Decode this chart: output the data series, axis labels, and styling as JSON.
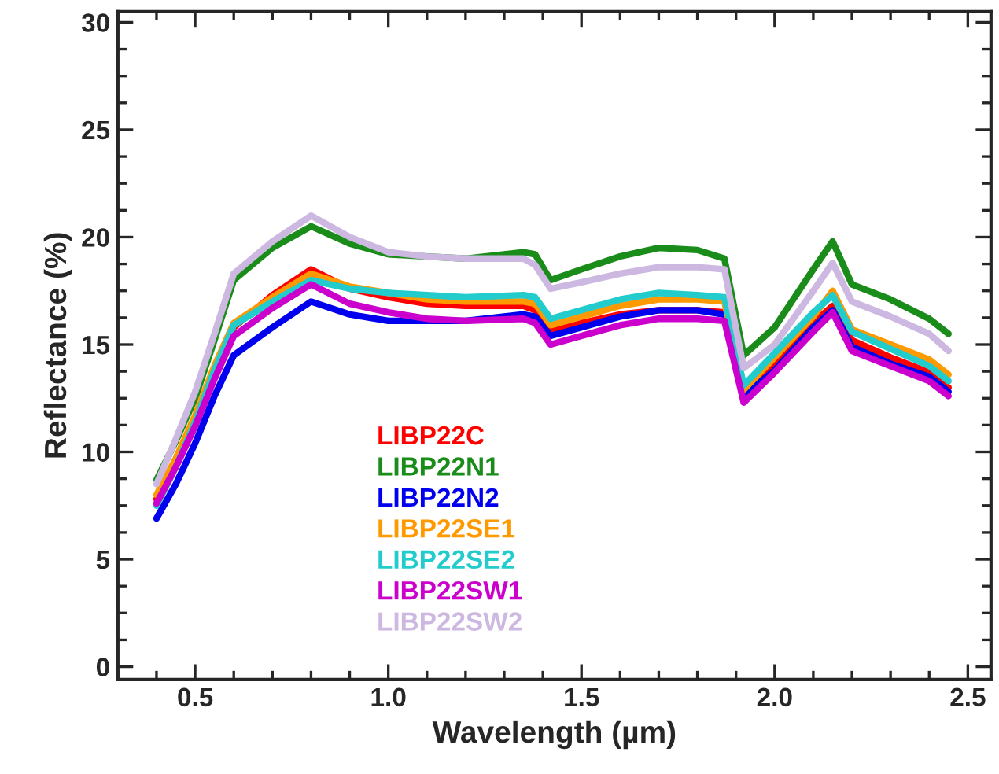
{
  "chart_data": {
    "type": "line",
    "xlabel": "Wavelength (µm)",
    "ylabel": "Reflectance (%)",
    "x": [
      0.4,
      0.45,
      0.5,
      0.55,
      0.6,
      0.7,
      0.8,
      0.9,
      1.0,
      1.1,
      1.2,
      1.35,
      1.38,
      1.42,
      1.5,
      1.6,
      1.7,
      1.8,
      1.87,
      1.92,
      2.0,
      2.1,
      2.15,
      2.2,
      2.3,
      2.4,
      2.45
    ],
    "series": [
      {
        "name": "LIBP22C",
        "color": "#ff0000",
        "values": [
          7.8,
          9.5,
          11.5,
          13.8,
          15.8,
          17.3,
          18.5,
          17.6,
          17.2,
          16.9,
          16.8,
          16.8,
          16.6,
          15.6,
          16.0,
          16.4,
          16.6,
          16.6,
          16.5,
          12.6,
          14.0,
          16.0,
          16.8,
          15.2,
          14.4,
          13.7,
          13.0
        ]
      },
      {
        "name": "LIBP22N1",
        "color": "#1a8c1a",
        "values": [
          8.7,
          10.5,
          12.5,
          15.2,
          18.0,
          19.5,
          20.5,
          19.7,
          19.2,
          19.1,
          19.0,
          19.3,
          19.2,
          18.0,
          18.5,
          19.1,
          19.5,
          19.4,
          19.0,
          14.5,
          15.8,
          18.5,
          19.8,
          17.8,
          17.1,
          16.2,
          15.5
        ]
      },
      {
        "name": "LIBP22N2",
        "color": "#0000ee",
        "values": [
          6.9,
          8.5,
          10.4,
          12.6,
          14.5,
          15.8,
          17.0,
          16.4,
          16.1,
          16.1,
          16.1,
          16.4,
          16.3,
          15.4,
          15.8,
          16.3,
          16.6,
          16.6,
          16.4,
          12.6,
          13.8,
          15.8,
          16.6,
          14.9,
          14.1,
          13.5,
          12.8
        ]
      },
      {
        "name": "LIBP22SE1",
        "color": "#ff9900",
        "values": [
          8.0,
          9.7,
          11.7,
          14.0,
          16.0,
          17.2,
          18.3,
          17.7,
          17.4,
          17.1,
          17.0,
          17.0,
          16.9,
          15.9,
          16.3,
          16.8,
          17.1,
          17.1,
          17.0,
          12.9,
          14.4,
          16.3,
          17.5,
          15.7,
          15.0,
          14.3,
          13.6
        ]
      },
      {
        "name": "LIBP22SE2",
        "color": "#22cccc",
        "values": [
          7.5,
          9.3,
          11.4,
          13.8,
          15.9,
          17.0,
          18.0,
          17.6,
          17.4,
          17.3,
          17.2,
          17.3,
          17.2,
          16.2,
          16.6,
          17.1,
          17.4,
          17.3,
          17.2,
          13.1,
          14.6,
          16.5,
          17.3,
          15.6,
          14.8,
          14.0,
          13.3
        ]
      },
      {
        "name": "LIBP22SW1",
        "color": "#cc00cc",
        "values": [
          7.6,
          9.3,
          11.2,
          13.4,
          15.4,
          16.7,
          17.8,
          16.9,
          16.5,
          16.2,
          16.1,
          16.2,
          16.0,
          15.0,
          15.4,
          15.9,
          16.2,
          16.2,
          16.1,
          12.3,
          13.7,
          15.6,
          16.5,
          14.7,
          14.0,
          13.3,
          12.6
        ]
      },
      {
        "name": "LIBP22SW2",
        "color": "#ccb8e0",
        "values": [
          8.5,
          10.6,
          12.8,
          15.5,
          18.3,
          19.8,
          21.0,
          20.0,
          19.3,
          19.1,
          19.0,
          19.0,
          18.7,
          17.6,
          17.9,
          18.3,
          18.6,
          18.6,
          18.5,
          13.9,
          15.0,
          17.5,
          18.8,
          17.0,
          16.3,
          15.5,
          14.7
        ]
      }
    ],
    "xlim": [
      0.3,
      2.56
    ],
    "ylim": [
      -0.6,
      30.5
    ],
    "xticks": [
      0.5,
      {
        "value": 1.0,
        "label": "1.0"
      },
      1.5,
      {
        "value": 2.0,
        "label": "2.0"
      },
      2.5
    ],
    "yticks": [
      0,
      5,
      10,
      15,
      20,
      25,
      30
    ],
    "grid": false,
    "legend": "bottom",
    "line_style": "solid",
    "marker": "none"
  }
}
